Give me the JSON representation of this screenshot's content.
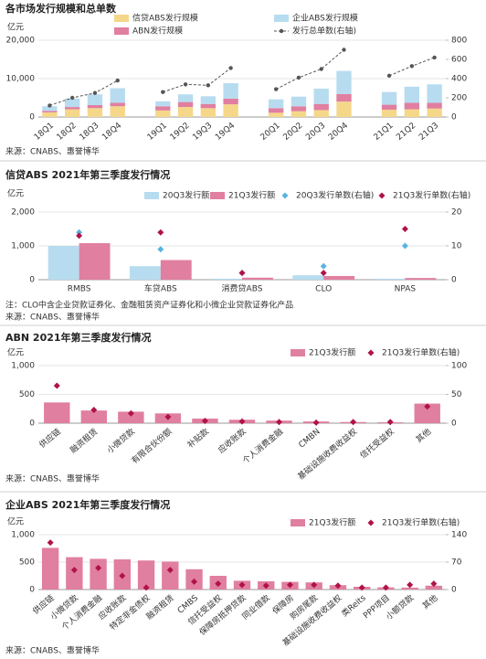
{
  "chart_data": [
    {
      "type": "bar",
      "stacked": true,
      "title": "各市场发行规模和总单数",
      "unit": "亿元",
      "grid": true,
      "categories": [
        "18Q1",
        "18Q2",
        "18Q3",
        "18Q4",
        null,
        "19Q1",
        "19Q2",
        "19Q3",
        "19Q4",
        null,
        "20Q1",
        "20Q2",
        "20Q3",
        "20Q4",
        null,
        "21Q1",
        "21Q2",
        "21Q3"
      ],
      "series": [
        {
          "name": "信贷ABS发行规模",
          "color": "#f5d78a",
          "mark": "bar",
          "values": [
            1200,
            2000,
            2300,
            2800,
            null,
            1700,
            2600,
            2300,
            3300,
            null,
            1100,
            1500,
            1800,
            4000,
            null,
            1900,
            2000,
            2200
          ]
        },
        {
          "name": "ABN发行规模",
          "color": "#e07fa0",
          "mark": "bar",
          "values": [
            400,
            600,
            800,
            900,
            null,
            1100,
            1300,
            1100,
            1500,
            null,
            1200,
            1300,
            1600,
            2000,
            null,
            1300,
            1700,
            1500
          ]
        },
        {
          "name": "企业ABS发行规模",
          "color": "#b7dcf0",
          "mark": "bar",
          "values": [
            1200,
            2200,
            2800,
            3800,
            null,
            1300,
            2000,
            2000,
            4000,
            null,
            2300,
            2500,
            4000,
            6000,
            null,
            3300,
            4200,
            4800
          ]
        },
        {
          "name": "发行总单数(右轴)",
          "color": "#555555",
          "mark": "line",
          "axis": "y2",
          "values": [
            120,
            200,
            250,
            380,
            null,
            260,
            340,
            330,
            510,
            null,
            290,
            410,
            500,
            700,
            null,
            430,
            530,
            620
          ]
        }
      ],
      "ylim": [
        0,
        20000
      ],
      "yticks": [
        0,
        {
          "value": 10000,
          "label": "10,000"
        },
        {
          "value": 20000,
          "label": "20,000"
        }
      ],
      "y2lim": [
        0,
        800
      ],
      "y2ticks": [
        0,
        200,
        400,
        600,
        800
      ],
      "source": "来源：CNABS、惠誉博华"
    },
    {
      "type": "bar",
      "stacked": false,
      "title": "信贷ABS 2021年第三季度发行情况",
      "unit": "亿元",
      "grid": true,
      "categories": [
        "RMBS",
        "车贷ABS",
        "消费贷ABS",
        "CLO",
        "NPAS"
      ],
      "series": [
        {
          "name": "20Q3发行额",
          "color": "#b7dcf0",
          "mark": "bar",
          "values": [
            1000,
            400,
            30,
            130,
            30
          ]
        },
        {
          "name": "21Q3发行额",
          "color": "#e07fa0",
          "mark": "bar",
          "values": [
            1080,
            580,
            60,
            110,
            50
          ]
        },
        {
          "name": "20Q3发行单数(右轴)",
          "color": "#5ab4e0",
          "mark": "diamond",
          "axis": "y2",
          "values": [
            14,
            9,
            2,
            4,
            10
          ]
        },
        {
          "name": "21Q3发行单数(右轴)",
          "color": "#b0124a",
          "mark": "diamond",
          "axis": "y2",
          "values": [
            13,
            14,
            2,
            2,
            15
          ]
        }
      ],
      "ylim": [
        0,
        2000
      ],
      "yticks": [
        0,
        {
          "value": 1000,
          "label": "1,000"
        },
        {
          "value": 2000,
          "label": "2,000"
        }
      ],
      "y2lim": [
        0,
        20
      ],
      "y2ticks": [
        0,
        10,
        20
      ],
      "note": "注：CLO中含企业贷款证券化、金融租赁资产证券化和小微企业贷款证券化产品",
      "source": "来源：CNABS、惠誉博华"
    },
    {
      "type": "bar",
      "stacked": false,
      "title": "ABN 2021年第三季度发行情况",
      "unit": "亿元",
      "grid": true,
      "categories": [
        "供应链",
        "融资租赁",
        "小微贷款",
        "有限合伙份额",
        "补贴款",
        "应收账款",
        "个人消费金融",
        "CMBN",
        "基础设施收费收益权",
        "信托受益权",
        "其他"
      ],
      "series": [
        {
          "name": "21Q3发行额",
          "color": "#e07fa0",
          "mark": "bar",
          "values": [
            360,
            220,
            200,
            170,
            80,
            60,
            45,
            30,
            20,
            15,
            340
          ]
        },
        {
          "name": "21Q3发行单数(右轴)",
          "color": "#b0124a",
          "mark": "diamond",
          "axis": "y2",
          "values": [
            65,
            23,
            17,
            11,
            4,
            3,
            2,
            1,
            2,
            2,
            29
          ]
        }
      ],
      "ylim": [
        0,
        1000
      ],
      "yticks": [
        0,
        500,
        {
          "value": 1000,
          "label": "1,000"
        }
      ],
      "y2lim": [
        0,
        100
      ],
      "y2ticks": [
        0,
        50,
        100
      ],
      "source": "来源：CNABS、惠誉博华"
    },
    {
      "type": "bar",
      "stacked": false,
      "title": "企业ABS 2021年第三季度发行情况",
      "unit": "亿元",
      "grid": true,
      "categories": [
        "供应链",
        "小微贷款",
        "个人消费金融",
        "应收账款",
        "特定非金债权",
        "融资租赁",
        "CMBS",
        "信托受益权",
        "保障房抵押贷款",
        "同业借款",
        "保障房",
        "购房尾款",
        "基础设施收费收益权",
        "类Reits",
        "PPP项目",
        "小额贷款",
        "其他"
      ],
      "series": [
        {
          "name": "21Q3发行额",
          "color": "#e07fa0",
          "mark": "bar",
          "values": [
            760,
            590,
            560,
            550,
            530,
            510,
            370,
            250,
            160,
            150,
            140,
            130,
            80,
            50,
            40,
            35,
            70
          ]
        },
        {
          "name": "21Q3发行单数(右轴)",
          "color": "#b0124a",
          "mark": "diamond",
          "axis": "y2",
          "values": [
            120,
            50,
            55,
            35,
            5,
            50,
            20,
            15,
            12,
            10,
            12,
            12,
            10,
            5,
            5,
            12,
            15
          ]
        }
      ],
      "ylim": [
        0,
        1000
      ],
      "yticks": [
        0,
        500,
        {
          "value": 1000,
          "label": "1,000"
        }
      ],
      "y2lim": [
        0,
        140
      ],
      "y2ticks": [
        0,
        70,
        140
      ],
      "source": "来源：CNABS、惠誉博华"
    }
  ]
}
